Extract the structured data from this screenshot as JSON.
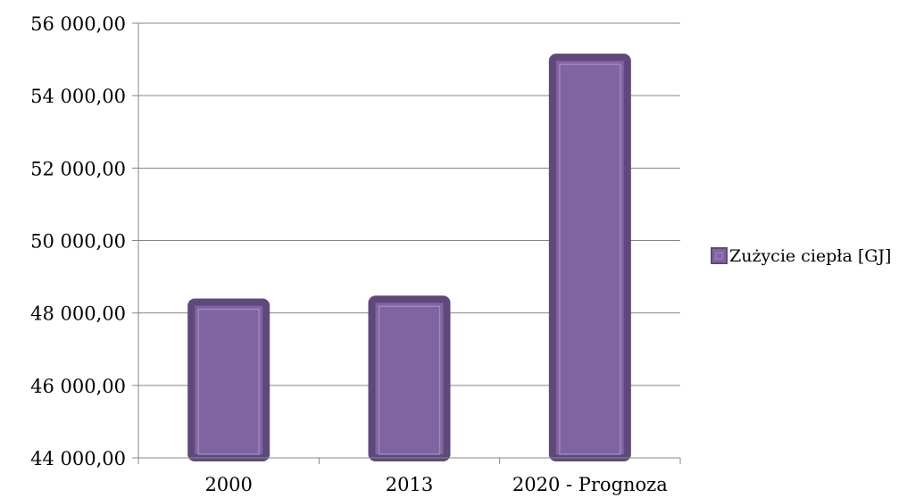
{
  "chart_data": {
    "type": "bar",
    "categories": [
      "2000",
      "2013",
      "2020 - Prognoza"
    ],
    "series": [
      {
        "name": "Zużycie ciepła [GJ]",
        "values": [
          48300,
          48380,
          55060
        ]
      }
    ],
    "ylim": [
      44000,
      56000
    ],
    "yticks": [
      44000,
      46000,
      48000,
      50000,
      52000,
      54000,
      56000
    ],
    "ytick_labels": [
      "44 000,00",
      "46 000,00",
      "48 000,00",
      "50 000,00",
      "52 000,00",
      "54 000,00",
      "56 000,00"
    ],
    "grid": true,
    "legend_position": "right",
    "colors": {
      "bar_fill": "#8064a2",
      "bar_border": "#5f497a",
      "bar_inner_line": "#9e86c0",
      "grid": "#868686"
    }
  }
}
